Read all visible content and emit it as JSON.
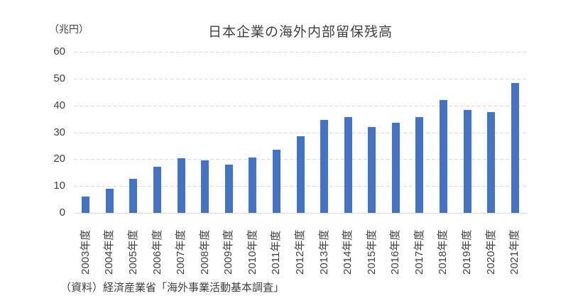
{
  "chart": {
    "title": "日本企業の海外内部留保残高",
    "unit_label": "（兆円）",
    "source": "（資料）経済産業省「海外事業活動基本調査」"
  },
  "chart_data": {
    "type": "bar",
    "title": "日本企業の海外内部留保残高",
    "unit": "兆円",
    "categories": [
      "2003年度",
      "2004年度",
      "2005年度",
      "2006年度",
      "2007年度",
      "2008年度",
      "2009年度",
      "2010年度",
      "2011年度",
      "2012年度",
      "2013年度",
      "2014年度",
      "2015年度",
      "2016年度",
      "2017年度",
      "2018年度",
      "2019年度",
      "2020年度",
      "2021年度"
    ],
    "values": [
      6.1,
      8.9,
      12.6,
      17.1,
      20.3,
      19.5,
      17.9,
      20.5,
      23.4,
      28.6,
      34.5,
      35.6,
      32.1,
      33.7,
      35.6,
      41.9,
      38.2,
      37.6,
      48.3
    ],
    "xlabel": "",
    "ylabel": "（兆円）",
    "ylim": [
      0,
      60
    ],
    "yticks": [
      0,
      10,
      20,
      30,
      40,
      50,
      60
    ],
    "grid": "horizontal-dashed",
    "legend": "none",
    "bar_color": "#4472C4",
    "gridline_color": "#D9D9D9",
    "axis_line_color": "#D9D9D9",
    "text_color": "#3F3F3F",
    "source": "（資料）経済産業省「海外事業活動基本調査」"
  }
}
